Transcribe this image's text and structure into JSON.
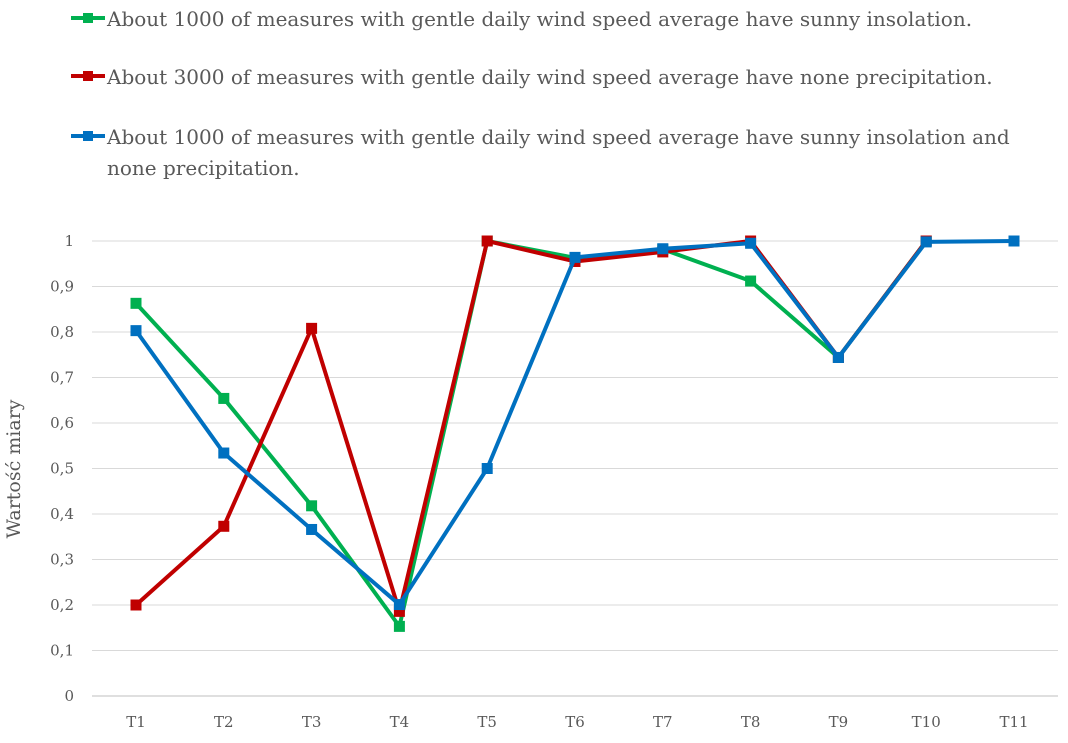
{
  "chart_data": {
    "type": "line",
    "title": "",
    "xlabel": "",
    "ylabel": "Wartość miary",
    "ylim": [
      0,
      1
    ],
    "yticks": [
      "0",
      "0,1",
      "0,2",
      "0,3",
      "0,4",
      "0,5",
      "0,6",
      "0,7",
      "0,8",
      "0,9",
      "1"
    ],
    "categories": [
      "T1",
      "T2",
      "T3",
      "T4",
      "T5",
      "T6",
      "T7",
      "T8",
      "T9",
      "T10",
      "T11"
    ],
    "grid": true,
    "legend_position": "top",
    "series": [
      {
        "name": "About 1000 of measures with gentle daily wind speed average have sunny insolation.",
        "color": "#00b050",
        "values": [
          0.863,
          0.654,
          0.418,
          0.153,
          1.0,
          0.963,
          0.982,
          0.912,
          0.744,
          1.0,
          null
        ]
      },
      {
        "name": "About 3000 of measures with gentle daily wind speed average have none precipitation.",
        "color": "#c00000",
        "values": [
          0.2,
          0.373,
          0.808,
          0.186,
          1.0,
          0.955,
          0.976,
          1.0,
          0.744,
          1.0,
          null
        ]
      },
      {
        "name": "About 1000 of measures with gentle daily wind speed average have sunny insolation and none precipitation.",
        "color": "#0070c0",
        "values": [
          0.803,
          0.534,
          0.366,
          0.201,
          0.5,
          0.964,
          0.983,
          0.995,
          0.744,
          0.998,
          1.0
        ]
      }
    ]
  }
}
